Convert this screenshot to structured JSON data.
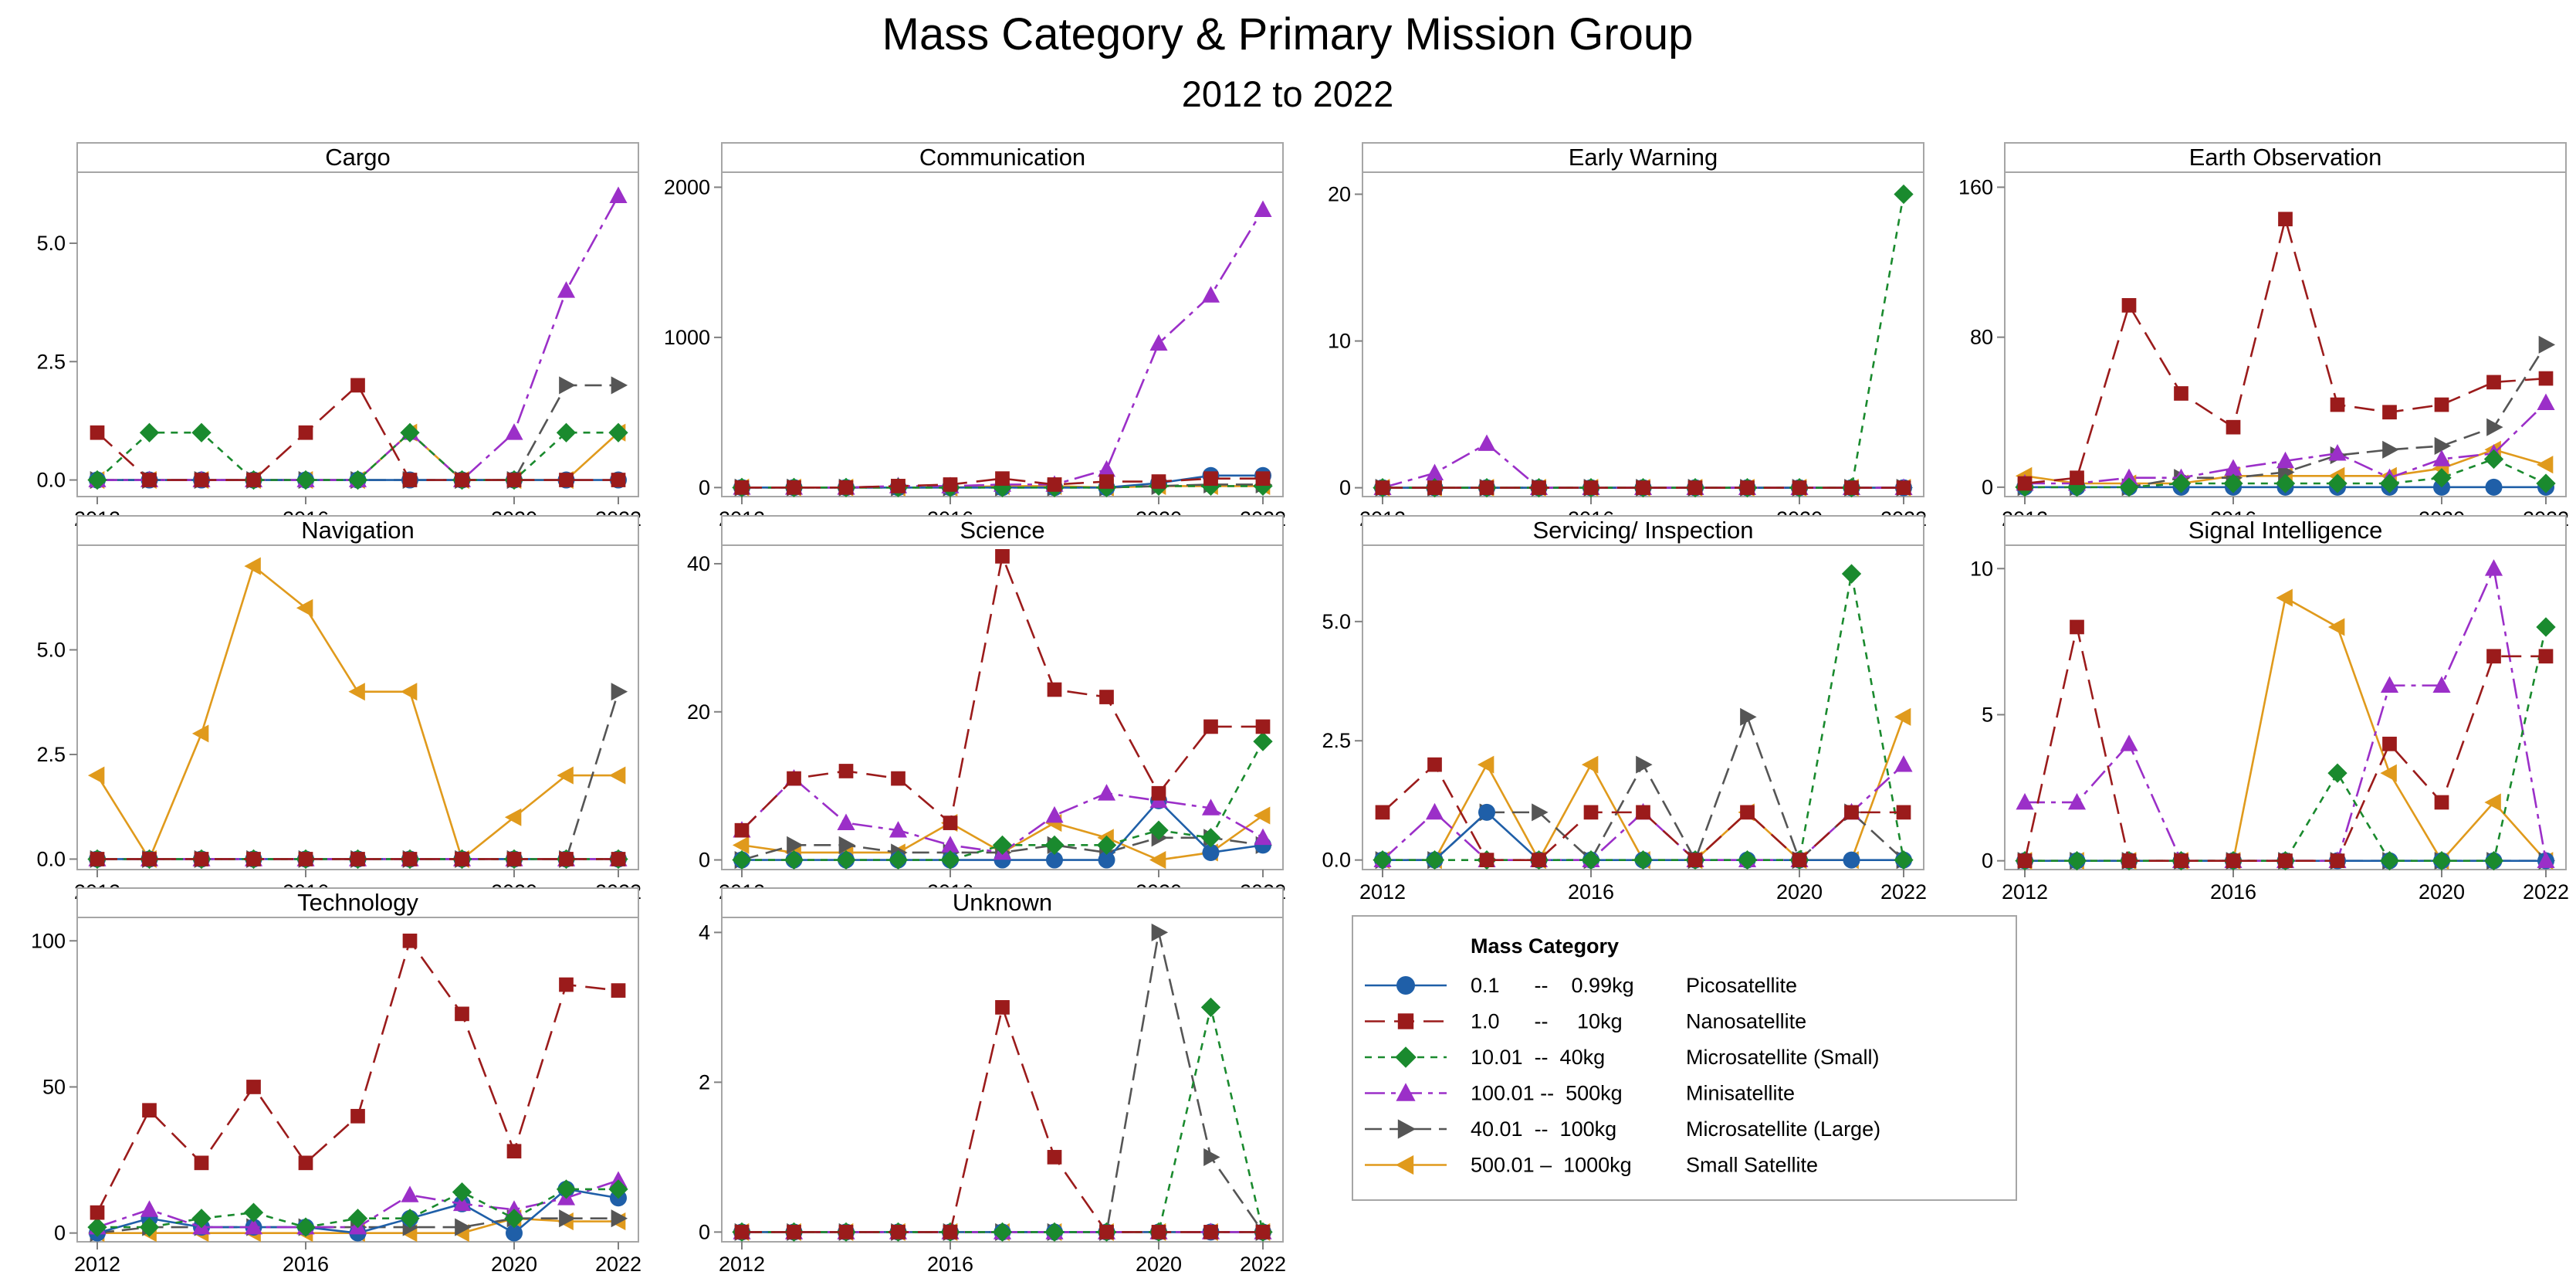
{
  "chart_data": {
    "type": "line",
    "title": "Mass Category & Primary Mission Group",
    "subtitle": "2012 to 2022",
    "x": [
      2012,
      2013,
      2014,
      2015,
      2016,
      2017,
      2018,
      2019,
      2020,
      2021,
      2022
    ],
    "x_ticks": [
      "2012",
      "2016",
      "2020",
      "2022"
    ],
    "legend": {
      "title": "Mass Category",
      "entries": [
        {
          "key": "pico",
          "range": "0.1      --    0.99kg",
          "name": "Picosatellite",
          "color": "#1f5fa8",
          "marker": "circle",
          "dash": ""
        },
        {
          "key": "nano",
          "range": "1.0      --     10kg",
          "name": "Nanosatellite",
          "color": "#9b1b1b",
          "marker": "square",
          "dash": "26,12"
        },
        {
          "key": "micro_s",
          "range": "10.01  --  40kg",
          "name": "Microsatellite (Small)",
          "color": "#1a8a2e",
          "marker": "diamond",
          "dash": "9,8"
        },
        {
          "key": "mini",
          "range": "100.01 --  500kg",
          "name": "Minisatellite",
          "color": "#9b2fc8",
          "marker": "triangle-up",
          "dash": "26,8,6,8"
        },
        {
          "key": "micro_l",
          "range": "40.01  --  100kg",
          "name": "Microsatellite (Large)",
          "color": "#555555",
          "marker": "triangle-right",
          "dash": "22,10"
        },
        {
          "key": "small",
          "range": "500.01 –  1000kg",
          "name": "Small Satellite",
          "color": "#e09a1c",
          "marker": "triangle-left",
          "dash": ""
        }
      ]
    },
    "panels": [
      {
        "name": "Cargo",
        "yticks": [
          0,
          2.5,
          5
        ],
        "ytick_labels": [
          "0.0",
          "2.5",
          "5.0"
        ],
        "ylim": [
          -0.35,
          6.5
        ],
        "series": {
          "pico": [
            0,
            0,
            0,
            0,
            0,
            0,
            0,
            0,
            0,
            0,
            0
          ],
          "nano": [
            1,
            0,
            0,
            0,
            1,
            2,
            0,
            0,
            0,
            0,
            0
          ],
          "micro_s": [
            0,
            1,
            1,
            0,
            0,
            0,
            1,
            0,
            0,
            1,
            1
          ],
          "mini": [
            0,
            0,
            0,
            0,
            0,
            0,
            1,
            0,
            1,
            4,
            6
          ],
          "micro_l": [
            0,
            0,
            0,
            0,
            0,
            0,
            0,
            0,
            0,
            2,
            2
          ],
          "small": [
            0,
            0,
            0,
            0,
            0,
            0,
            1,
            0,
            0,
            0,
            1
          ]
        }
      },
      {
        "name": "Communication",
        "yticks": [
          0,
          1000,
          2000
        ],
        "ytick_labels": [
          "0",
          "1000",
          "2000"
        ],
        "ylim": [
          -60,
          2100
        ],
        "series": {
          "pico": [
            0,
            0,
            0,
            0,
            0,
            0,
            0,
            0,
            30,
            80,
            80
          ],
          "nano": [
            0,
            0,
            0,
            10,
            20,
            60,
            20,
            40,
            40,
            60,
            60
          ],
          "micro_s": [
            0,
            0,
            0,
            0,
            0,
            0,
            0,
            0,
            10,
            10,
            10
          ],
          "mini": [
            0,
            0,
            0,
            10,
            10,
            20,
            20,
            120,
            960,
            1280,
            1850
          ],
          "micro_l": [
            0,
            0,
            0,
            0,
            0,
            0,
            0,
            0,
            10,
            20,
            20
          ],
          "small": [
            0,
            0,
            0,
            0,
            0,
            10,
            10,
            0,
            10,
            10,
            10
          ]
        }
      },
      {
        "name": "Early Warning",
        "yticks": [
          0,
          10,
          20
        ],
        "ytick_labels": [
          "0",
          "10",
          "20"
        ],
        "ylim": [
          -0.6,
          21.5
        ],
        "series": {
          "pico": [
            0,
            0,
            0,
            0,
            0,
            0,
            0,
            0,
            0,
            0,
            0
          ],
          "nano": [
            0,
            0,
            0,
            0,
            0,
            0,
            0,
            0,
            0,
            0,
            0
          ],
          "micro_s": [
            0,
            0,
            0,
            0,
            0,
            0,
            0,
            0,
            0,
            0,
            20
          ],
          "mini": [
            0,
            1,
            3,
            0,
            0,
            0,
            0,
            0,
            0,
            0,
            0
          ],
          "micro_l": [
            0,
            0,
            0,
            0,
            0,
            0,
            0,
            0,
            0,
            0,
            0
          ],
          "small": [
            0,
            0,
            0,
            0,
            0,
            0,
            0,
            0,
            0,
            0,
            0
          ]
        }
      },
      {
        "name": "Earth Observation",
        "yticks": [
          0,
          80,
          160
        ],
        "ytick_labels": [
          "0",
          "80",
          "160"
        ],
        "ylim": [
          -5,
          168
        ],
        "series": {
          "pico": [
            0,
            0,
            0,
            0,
            0,
            0,
            0,
            0,
            0,
            0,
            0
          ],
          "nano": [
            2,
            5,
            97,
            50,
            32,
            143,
            44,
            40,
            44,
            56,
            58
          ],
          "micro_s": [
            0,
            0,
            0,
            2,
            2,
            2,
            2,
            2,
            5,
            15,
            2
          ],
          "mini": [
            2,
            2,
            5,
            5,
            10,
            14,
            18,
            5,
            15,
            18,
            45
          ],
          "micro_l": [
            0,
            0,
            0,
            5,
            5,
            8,
            17,
            20,
            22,
            32,
            76
          ],
          "small": [
            6,
            2,
            2,
            2,
            6,
            6,
            6,
            6,
            10,
            20,
            12
          ]
        }
      },
      {
        "name": "Navigation",
        "yticks": [
          0,
          2.5,
          5
        ],
        "ytick_labels": [
          "0.0",
          "2.5",
          "5.0"
        ],
        "ylim": [
          -0.25,
          7.5
        ],
        "series": {
          "pico": [
            0,
            0,
            0,
            0,
            0,
            0,
            0,
            0,
            0,
            0,
            0
          ],
          "nano": [
            0,
            0,
            0,
            0,
            0,
            0,
            0,
            0,
            0,
            0,
            0
          ],
          "micro_s": [
            0,
            0,
            0,
            0,
            0,
            0,
            0,
            0,
            0,
            0,
            0
          ],
          "mini": [
            0,
            0,
            0,
            0,
            0,
            0,
            0,
            0,
            0,
            0,
            0
          ],
          "micro_l": [
            0,
            0,
            0,
            0,
            0,
            0,
            0,
            0,
            0,
            0,
            4
          ],
          "small": [
            2,
            0,
            3,
            7,
            6,
            4,
            4,
            0,
            1,
            2,
            2
          ]
        }
      },
      {
        "name": "Science",
        "yticks": [
          0,
          20,
          40
        ],
        "ytick_labels": [
          "0",
          "20",
          "40"
        ],
        "ylim": [
          -1.3,
          42.5
        ],
        "series": {
          "pico": [
            0,
            0,
            0,
            0,
            0,
            0,
            0,
            0,
            8,
            1,
            2
          ],
          "nano": [
            4,
            11,
            12,
            11,
            5,
            41,
            23,
            22,
            9,
            18,
            18
          ],
          "micro_s": [
            0,
            0,
            0,
            0,
            0,
            2,
            2,
            2,
            4,
            3,
            16
          ],
          "mini": [
            4,
            11,
            5,
            4,
            2,
            1,
            6,
            9,
            8,
            7,
            3
          ],
          "micro_l": [
            0,
            2,
            2,
            1,
            1,
            1,
            2,
            1,
            3,
            3,
            2
          ],
          "small": [
            2,
            1,
            1,
            1,
            5,
            1,
            5,
            3,
            0,
            1,
            6
          ]
        }
      },
      {
        "name": "Servicing/ Inspection",
        "yticks": [
          0,
          2.5,
          5
        ],
        "ytick_labels": [
          "0.0",
          "2.5",
          "5.0"
        ],
        "ylim": [
          -0.2,
          6.6
        ],
        "series": {
          "pico": [
            0,
            0,
            1,
            0,
            0,
            0,
            0,
            0,
            0,
            0,
            0
          ],
          "nano": [
            1,
            2,
            0,
            0,
            1,
            1,
            0,
            1,
            0,
            1,
            1
          ],
          "micro_s": [
            0,
            0,
            0,
            0,
            0,
            0,
            0,
            0,
            0,
            6,
            0
          ],
          "mini": [
            0,
            1,
            0,
            0,
            0,
            1,
            0,
            0,
            0,
            1,
            2
          ],
          "micro_l": [
            0,
            0,
            1,
            1,
            0,
            2,
            0,
            3,
            0,
            1,
            0
          ],
          "small": [
            0,
            0,
            2,
            0,
            2,
            0,
            0,
            1,
            0,
            0,
            3
          ]
        }
      },
      {
        "name": "Signal Intelligence",
        "yticks": [
          0,
          5,
          10
        ],
        "ytick_labels": [
          "0",
          "5",
          "10"
        ],
        "ylim": [
          -0.3,
          10.8
        ],
        "series": {
          "pico": [
            0,
            0,
            0,
            0,
            0,
            0,
            0,
            0,
            0,
            0,
            0
          ],
          "nano": [
            0,
            8,
            0,
            0,
            0,
            0,
            0,
            4,
            2,
            7,
            7
          ],
          "micro_s": [
            0,
            0,
            0,
            0,
            0,
            0,
            3,
            0,
            0,
            0,
            8
          ],
          "mini": [
            2,
            2,
            4,
            0,
            0,
            0,
            0,
            6,
            6,
            10,
            0
          ],
          "micro_l": [
            0,
            0,
            0,
            0,
            0,
            0,
            0,
            0,
            0,
            0,
            0
          ],
          "small": [
            0,
            0,
            0,
            0,
            0,
            9,
            8,
            3,
            0,
            2,
            0
          ]
        }
      },
      {
        "name": "Technology",
        "yticks": [
          0,
          50,
          100
        ],
        "ytick_labels": [
          "0",
          "50",
          "100"
        ],
        "ylim": [
          -3,
          108
        ],
        "series": {
          "pico": [
            0,
            5,
            2,
            2,
            2,
            0,
            5,
            10,
            0,
            15,
            12
          ],
          "nano": [
            7,
            42,
            24,
            50,
            24,
            40,
            100,
            75,
            28,
            85,
            83
          ],
          "micro_s": [
            2,
            2,
            5,
            7,
            2,
            5,
            5,
            14,
            5,
            15,
            15
          ],
          "mini": [
            2,
            8,
            2,
            2,
            2,
            2,
            13,
            10,
            8,
            12,
            18
          ],
          "micro_l": [
            0,
            2,
            2,
            2,
            2,
            2,
            2,
            2,
            5,
            5,
            5
          ],
          "small": [
            0,
            0,
            0,
            0,
            0,
            0,
            0,
            0,
            5,
            4,
            4
          ]
        }
      },
      {
        "name": "Unknown",
        "yticks": [
          0,
          2,
          4
        ],
        "ytick_labels": [
          "0",
          "2",
          "4"
        ],
        "ylim": [
          -0.13,
          4.2
        ],
        "series": {
          "pico": [
            0,
            0,
            0,
            0,
            0,
            0,
            0,
            0,
            0,
            0,
            0
          ],
          "nano": [
            0,
            0,
            0,
            0,
            0,
            3,
            1,
            0,
            0,
            0,
            0
          ],
          "micro_s": [
            0,
            0,
            0,
            0,
            0,
            0,
            0,
            0,
            0,
            3,
            0
          ],
          "mini": [
            0,
            0,
            0,
            0,
            0,
            0,
            0,
            0,
            0,
            0,
            0
          ],
          "micro_l": [
            0,
            0,
            0,
            0,
            0,
            0,
            0,
            0,
            4,
            1,
            0
          ],
          "small": [
            0,
            0,
            0,
            0,
            0,
            0,
            0,
            0,
            0,
            0,
            0
          ]
        }
      }
    ]
  }
}
